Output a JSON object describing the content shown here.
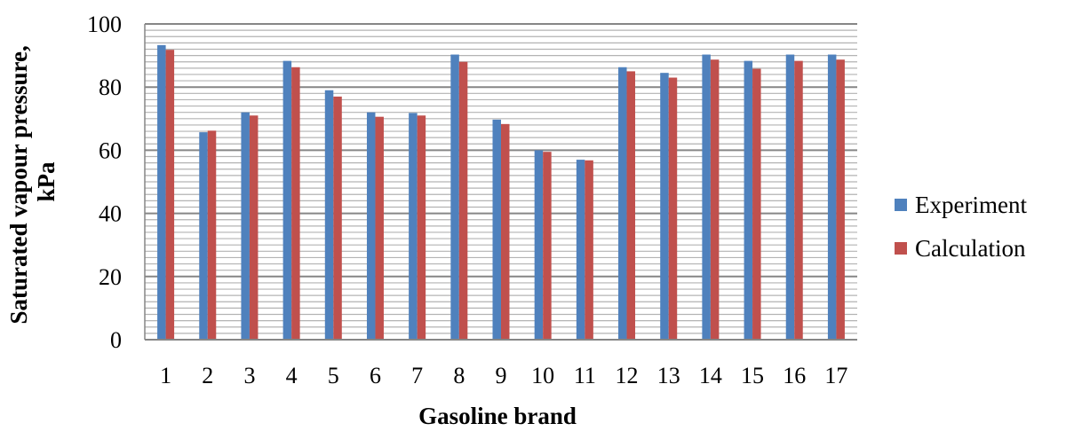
{
  "chart_data": {
    "type": "bar",
    "title": "",
    "xlabel": "Gasoline brand",
    "ylabel_lines": [
      "Saturated vapour pressure,",
      "kPa"
    ],
    "ylim": [
      0,
      100
    ],
    "y_ticks": [
      "0",
      "20",
      "40",
      "60",
      "80",
      "100"
    ],
    "grid": true,
    "legend_position": "right",
    "categories": [
      "1",
      "2",
      "3",
      "4",
      "5",
      "6",
      "7",
      "8",
      "9",
      "10",
      "11",
      "12",
      "13",
      "14",
      "15",
      "16",
      "17"
    ],
    "series": [
      {
        "name": "Experiment",
        "color": "#4f81bd",
        "values": [
          93.3,
          65.7,
          72.0,
          88.3,
          79.0,
          72.0,
          71.8,
          90.3,
          69.7,
          60.0,
          57.0,
          86.3,
          84.5,
          90.3,
          88.3,
          90.3,
          90.3
        ]
      },
      {
        "name": "Calculation",
        "color": "#c0504d",
        "values": [
          91.8,
          66.2,
          71.0,
          86.3,
          77.0,
          70.6,
          71.0,
          88.0,
          68.3,
          59.5,
          56.8,
          85.0,
          83.0,
          88.7,
          85.8,
          88.3,
          88.7
        ]
      }
    ]
  }
}
